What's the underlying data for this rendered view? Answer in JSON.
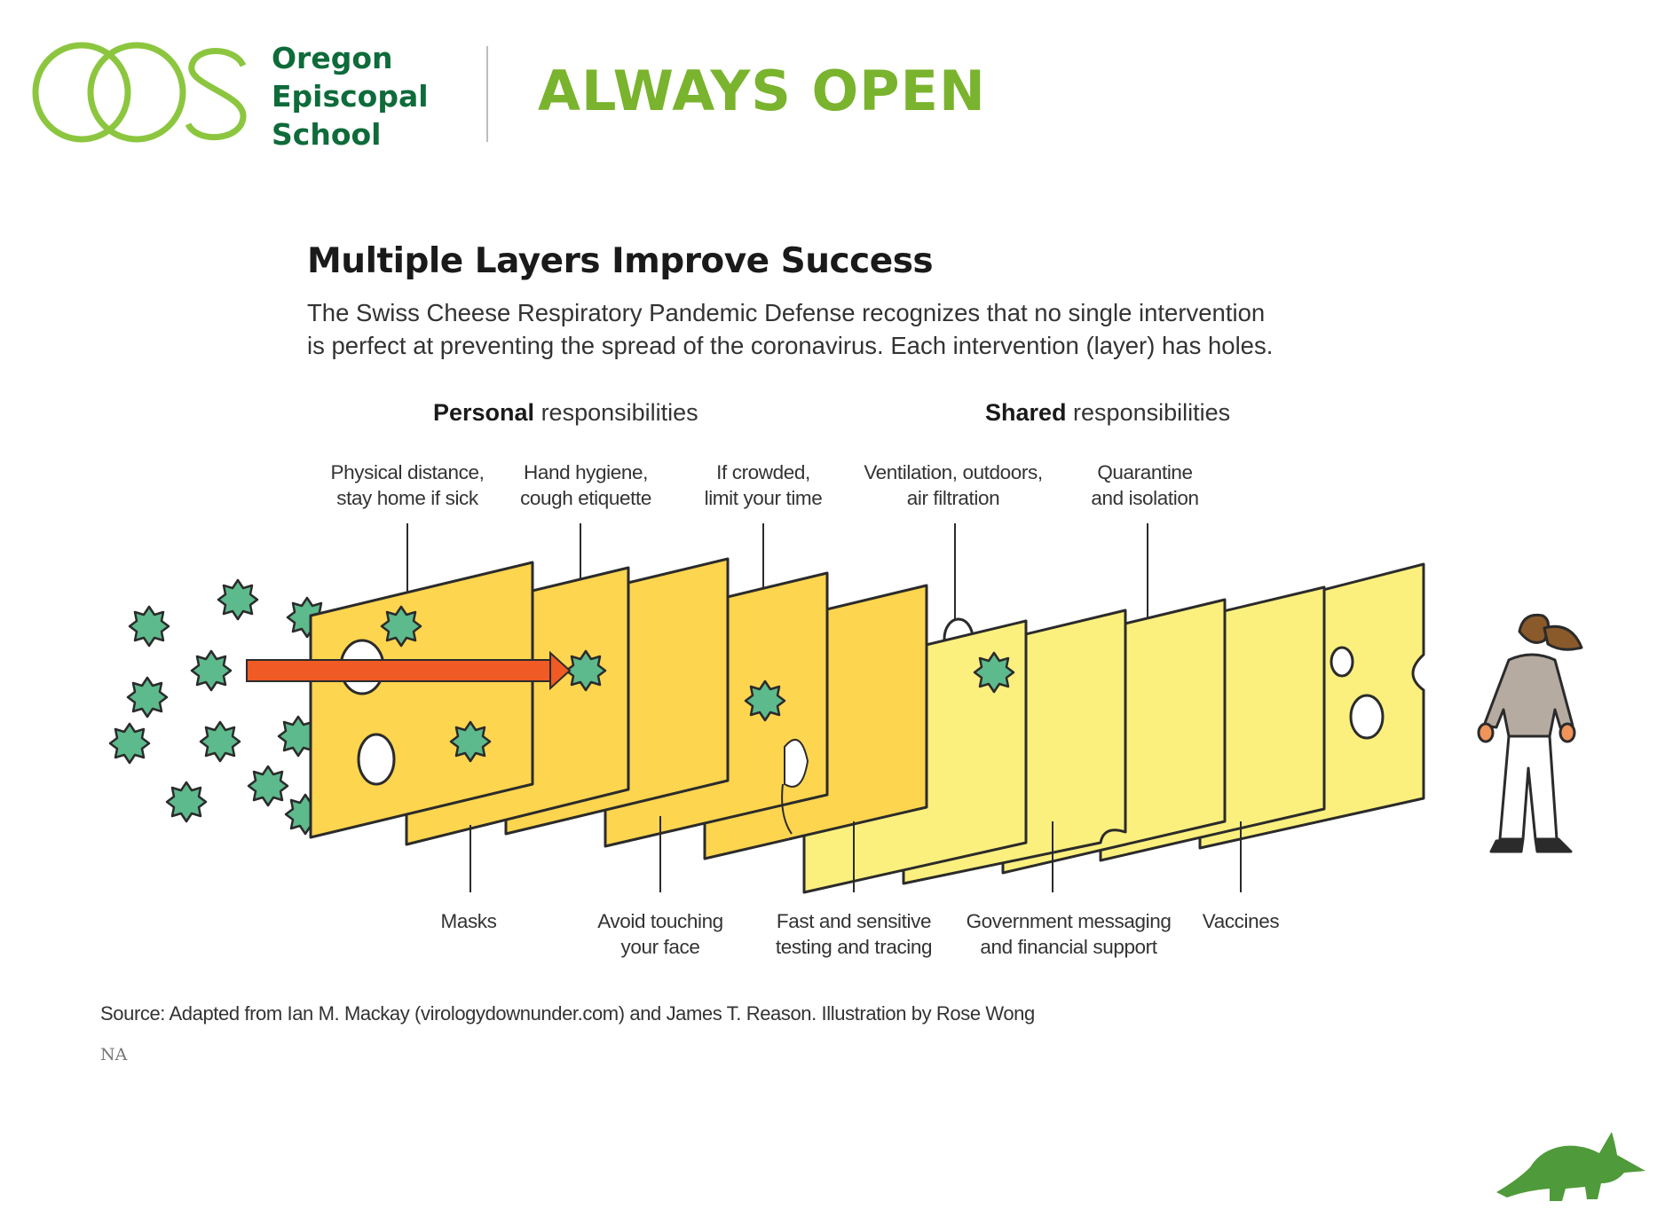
{
  "header": {
    "school_name_lines": [
      "Oregon",
      "Episcopal",
      "School"
    ],
    "tagline": "ALWAYS OPEN",
    "brand_colors": {
      "dark_green": "#0e6b3a",
      "light_green": "#7ab32e"
    }
  },
  "infographic": {
    "title": "Multiple Layers Improve Success",
    "subtitle_lines": [
      "The Swiss Cheese Respiratory Pandemic Defense recognizes that no single intervention",
      "is perfect at preventing the spread of the coronavirus. Each intervention (layer) has holes."
    ],
    "groups": {
      "personal": {
        "bold": "Personal",
        "rest": " responsibilities"
      },
      "shared": {
        "bold": "Shared",
        "rest": " responsibilities"
      }
    },
    "top_labels": [
      [
        "Physical distance,",
        "stay home if sick"
      ],
      [
        "Hand hygiene,",
        "cough etiquette"
      ],
      [
        "If crowded,",
        "limit your time"
      ],
      [
        "Ventilation, outdoors,",
        "air filtration"
      ],
      [
        "Quarantine",
        "and isolation"
      ]
    ],
    "bottom_labels": [
      [
        "Masks"
      ],
      [
        "Avoid touching",
        "your face"
      ],
      [
        "Fast and sensitive",
        "testing and tracing"
      ],
      [
        "Government messaging",
        "and financial support"
      ],
      [
        "Vaccines"
      ]
    ],
    "source": "Source: Adapted from Ian M. Mackay (virologydownunder.com) and James T. Reason. Illustration by Rose Wong",
    "na": "NA",
    "colors": {
      "personal_slice": "#fdd54f",
      "shared_slice": "#fbf07e",
      "virus": "#5dba8c",
      "arrow": "#f05a24",
      "outline": "#2b2b2b"
    }
  }
}
